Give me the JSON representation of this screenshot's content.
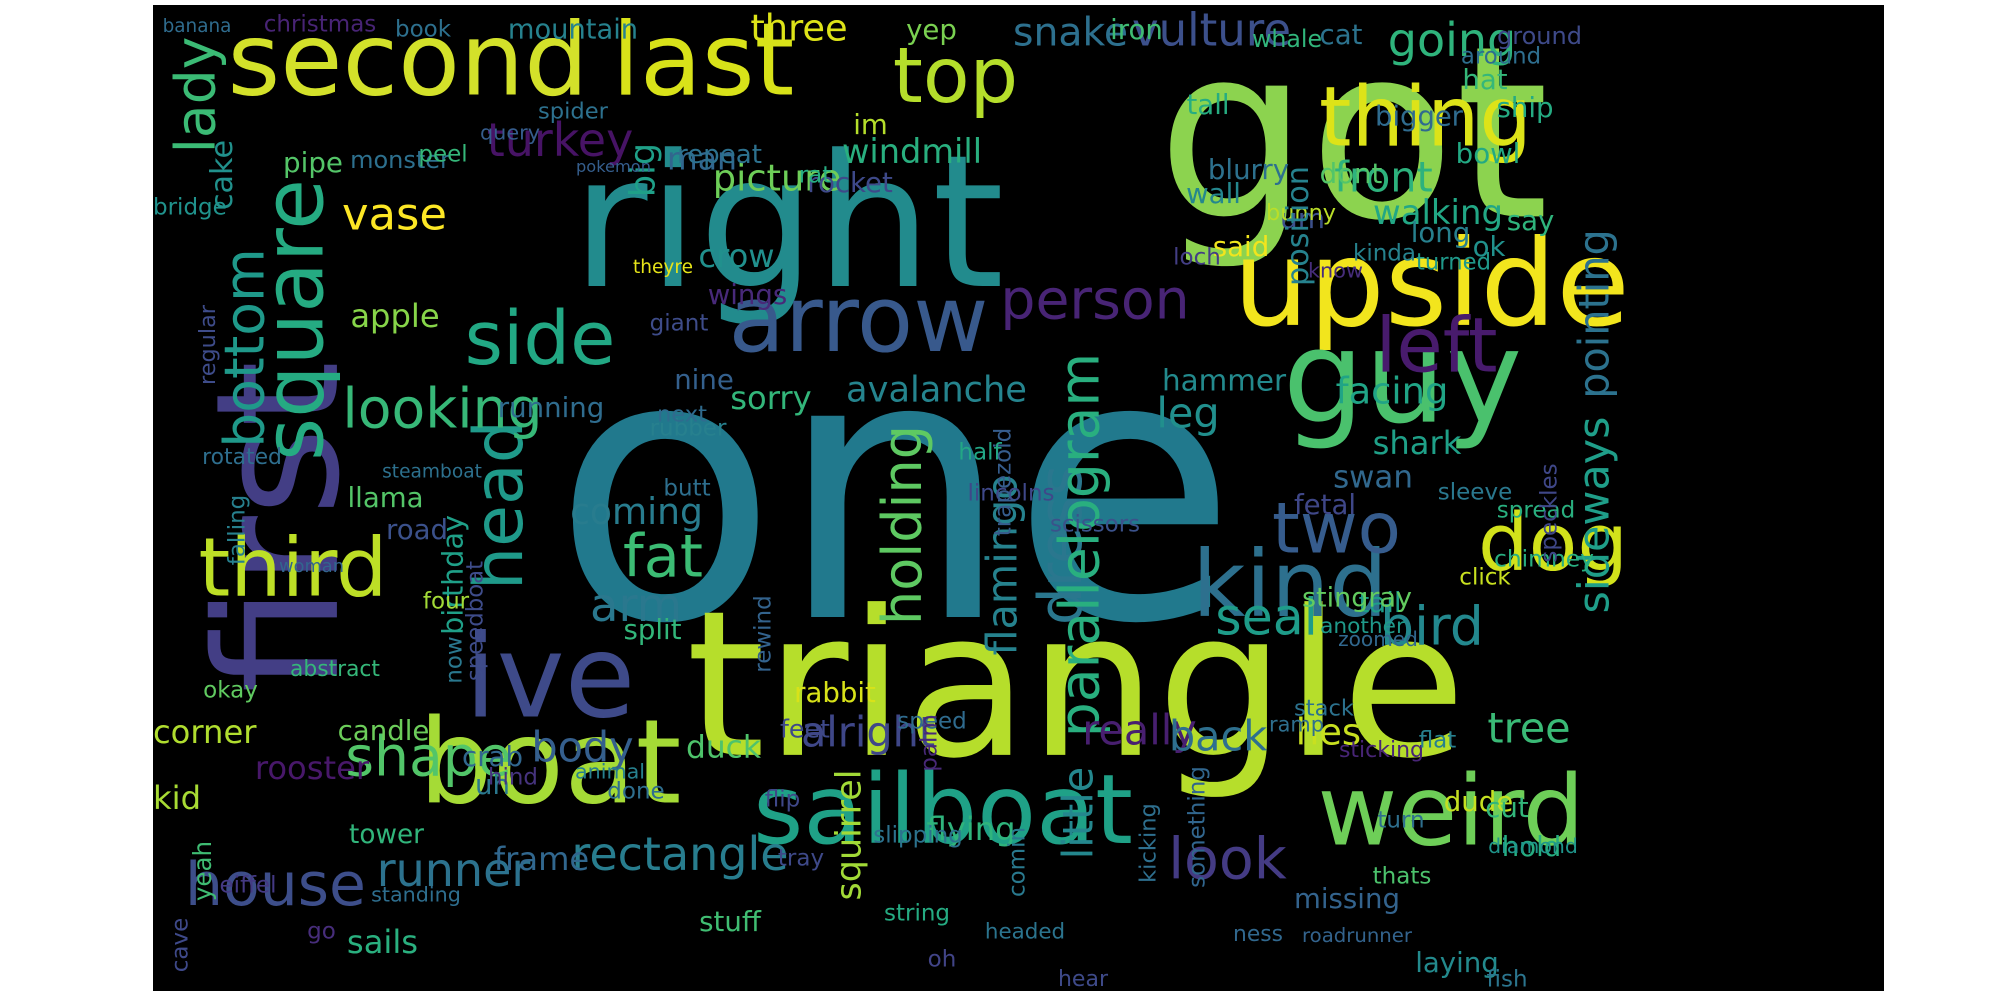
{
  "wordcloud": {
    "background": "#000000",
    "colormap": "viridis",
    "words": [
      {
        "text": "one",
        "color": "#21798d",
        "rotate": false
      },
      {
        "text": "got",
        "color": "#8cd34f",
        "rotate": false
      },
      {
        "text": "first",
        "color": "#433e85",
        "rotate": true
      },
      {
        "text": "triangle",
        "color": "#b6de2b",
        "rotate": false
      },
      {
        "text": "right",
        "color": "#228b8d",
        "rotate": false
      },
      {
        "text": "upside",
        "color": "#f2e51d",
        "rotate": false
      },
      {
        "text": "second",
        "color": "#d3e12a",
        "rotate": false
      },
      {
        "text": "last",
        "color": "#d8e219",
        "rotate": false
      },
      {
        "text": "guy",
        "color": "#4ac16d",
        "rotate": false
      },
      {
        "text": "boat",
        "color": "#a5db36",
        "rotate": false
      },
      {
        "text": "sailboat",
        "color": "#1fa187",
        "rotate": false
      },
      {
        "text": "weird",
        "color": "#6ece58",
        "rotate": false
      },
      {
        "text": "square",
        "color": "#25ab82",
        "rotate": true
      },
      {
        "text": "arrow",
        "color": "#38598c",
        "rotate": false
      },
      {
        "text": "ive",
        "color": "#3e4a89",
        "rotate": false
      },
      {
        "text": "thing",
        "color": "#dde318",
        "rotate": false
      },
      {
        "text": "dog",
        "color": "#d2e21b",
        "rotate": false
      },
      {
        "text": "kind",
        "color": "#2d708e",
        "rotate": false
      },
      {
        "text": "two",
        "color": "#365c8d",
        "rotate": false
      },
      {
        "text": "left",
        "color": "#481b6d",
        "rotate": false
      },
      {
        "text": "top",
        "color": "#b5de2b",
        "rotate": false
      },
      {
        "text": "third",
        "color": "#bddf26",
        "rotate": false
      },
      {
        "text": "head",
        "color": "#1f9a8a",
        "rotate": true
      },
      {
        "text": "side",
        "color": "#22a884",
        "rotate": false
      },
      {
        "text": "looking",
        "color": "#37b878",
        "rotate": false
      },
      {
        "text": "person",
        "color": "#482475",
        "rotate": false
      },
      {
        "text": "dress",
        "color": "#2a778e",
        "rotate": true
      },
      {
        "text": "fat",
        "color": "#3cbc74",
        "rotate": false
      },
      {
        "text": "arm",
        "color": "#2a788e",
        "rotate": false
      },
      {
        "text": "house",
        "color": "#3d4e8a",
        "rotate": false
      },
      {
        "text": "shape",
        "color": "#52c569",
        "rotate": false
      },
      {
        "text": "look",
        "color": "#443b84",
        "rotate": false
      },
      {
        "text": "bird",
        "color": "#23888e",
        "rotate": false
      },
      {
        "text": "seal",
        "color": "#1e9c89",
        "rotate": false
      },
      {
        "text": "vase",
        "color": "#fde725",
        "rotate": false
      },
      {
        "text": "turkey",
        "color": "#471365",
        "rotate": false
      },
      {
        "text": "going",
        "color": "#2fb47c",
        "rotate": false
      },
      {
        "text": "front",
        "color": "#2db27d",
        "rotate": false
      },
      {
        "text": "vulture",
        "color": "#3c508b",
        "rotate": false
      },
      {
        "text": "three",
        "color": "#dde318",
        "rotate": false
      },
      {
        "text": "snake",
        "color": "#2d708e",
        "rotate": false
      },
      {
        "text": "lady",
        "color": "#3bbb75",
        "rotate": true
      },
      {
        "text": "bottom",
        "color": "#1f998a",
        "rotate": true
      },
      {
        "text": "holding",
        "color": "#5ec962",
        "rotate": true
      },
      {
        "text": "parallelogram",
        "color": "#29af7f",
        "rotate": true
      },
      {
        "text": "alright",
        "color": "#3f4788",
        "rotate": false
      },
      {
        "text": "body",
        "color": "#355f8d",
        "rotate": false
      },
      {
        "text": "rectangle",
        "color": "#287d8e",
        "rotate": false
      },
      {
        "text": "runner",
        "color": "#2c728e",
        "rotate": false
      },
      {
        "text": "flamingo",
        "color": "#26828e",
        "rotate": true
      },
      {
        "text": "leg",
        "color": "#218f8d",
        "rotate": false
      },
      {
        "text": "sideways",
        "color": "#1f9e89",
        "rotate": true
      },
      {
        "text": "really",
        "color": "#481f70",
        "rotate": false
      },
      {
        "text": "tree",
        "color": "#3aba76",
        "rotate": false
      },
      {
        "text": "hes",
        "color": "#c8e020",
        "rotate": false
      },
      {
        "text": "back",
        "color": "#2e6f8e",
        "rotate": false
      },
      {
        "text": "little",
        "color": "#24878e",
        "rotate": true
      },
      {
        "text": "coming",
        "color": "#287c8e",
        "rotate": false
      },
      {
        "text": "squirrel",
        "color": "#a2da37",
        "rotate": true
      },
      {
        "text": "rooster",
        "color": "#48186a",
        "rotate": false
      },
      {
        "text": "sails",
        "color": "#2ab07f",
        "rotate": false
      },
      {
        "text": "windmill",
        "color": "#29af7f",
        "rotate": false
      },
      {
        "text": "avalanche",
        "color": "#25848e",
        "rotate": false
      },
      {
        "text": "picture",
        "color": "#6ece58",
        "rotate": false
      },
      {
        "text": "big",
        "color": "#1fa088",
        "rotate": true
      },
      {
        "text": "man",
        "color": "#31668e",
        "rotate": false
      },
      {
        "text": "walking",
        "color": "#22a785",
        "rotate": false
      },
      {
        "text": "um",
        "color": "#3c508b",
        "rotate": false
      },
      {
        "text": "pointing",
        "color": "#2c728e",
        "rotate": true
      },
      {
        "text": "facing",
        "color": "#20a486",
        "rotate": false
      },
      {
        "text": "hammer",
        "color": "#238a8d",
        "rotate": false
      },
      {
        "text": "shark",
        "color": "#1fa088",
        "rotate": false
      },
      {
        "text": "swan",
        "color": "#31688e",
        "rotate": false
      },
      {
        "text": "fetal",
        "color": "#3f4788",
        "rotate": false
      },
      {
        "text": "tail",
        "color": "#1e9d89",
        "rotate": false
      },
      {
        "text": "stingray",
        "color": "#62cb5f",
        "rotate": false
      },
      {
        "text": "chimney",
        "color": "#28ae80",
        "rotate": false
      },
      {
        "text": "road",
        "color": "#3b518b",
        "rotate": false
      },
      {
        "text": "llama",
        "color": "#54c568",
        "rotate": false
      },
      {
        "text": "sorry",
        "color": "#33b67a",
        "rotate": false
      },
      {
        "text": "apple",
        "color": "#87d549",
        "rotate": false
      },
      {
        "text": "crow",
        "color": "#21908d",
        "rotate": false
      },
      {
        "text": "wings",
        "color": "#482979",
        "rotate": false
      },
      {
        "text": "cake",
        "color": "#21918c",
        "rotate": true
      },
      {
        "text": "pipe",
        "color": "#54c568",
        "rotate": false
      },
      {
        "text": "monster",
        "color": "#2d708e",
        "rotate": false
      },
      {
        "text": "repeat",
        "color": "#2d718e",
        "rotate": false
      },
      {
        "text": "rocket",
        "color": "#3e4989",
        "rotate": false
      },
      {
        "text": "birthday",
        "color": "#1fa088",
        "rotate": true
      },
      {
        "text": "running",
        "color": "#2f6c8e",
        "rotate": false
      },
      {
        "text": "nine",
        "color": "#34608d",
        "rotate": false
      },
      {
        "text": "split",
        "color": "#32b67a",
        "rotate": false
      },
      {
        "text": "duck",
        "color": "#4ec36b",
        "rotate": false
      },
      {
        "text": "feet",
        "color": "#3e4989",
        "rotate": false
      },
      {
        "text": "flying",
        "color": "#2fb47c",
        "rotate": false
      },
      {
        "text": "frame",
        "color": "#31678e",
        "rotate": false
      },
      {
        "text": "stuff",
        "color": "#40bd72",
        "rotate": false
      },
      {
        "text": "candle",
        "color": "#6ccd5a",
        "rotate": false
      },
      {
        "text": "crab",
        "color": "#31678e",
        "rotate": false
      },
      {
        "text": "corner",
        "color": "#b0dd2f",
        "rotate": false
      },
      {
        "text": "kid",
        "color": "#a8db34",
        "rotate": false
      },
      {
        "text": "tower",
        "color": "#31b57b",
        "rotate": false
      },
      {
        "text": "yeah",
        "color": "#3fbc73",
        "rotate": true
      },
      {
        "text": "uh",
        "color": "#2a788e",
        "rotate": false
      },
      {
        "text": "rabbit",
        "color": "#d8e219",
        "rotate": false
      },
      {
        "text": "said",
        "color": "#f1e51d",
        "rotate": false
      },
      {
        "text": "bunny",
        "color": "#bade28",
        "rotate": false
      },
      {
        "text": "position",
        "color": "#26828e",
        "rotate": true
      },
      {
        "text": "long",
        "color": "#27808e",
        "rotate": false
      },
      {
        "text": "say",
        "color": "#2fb47c",
        "rotate": false
      },
      {
        "text": "ok",
        "color": "#21918c",
        "rotate": false
      },
      {
        "text": "missing",
        "color": "#33638d",
        "rotate": false
      },
      {
        "text": "laying",
        "color": "#238a8d",
        "rotate": false
      },
      {
        "text": "dude",
        "color": "#c5e021",
        "rotate": false
      },
      {
        "text": "cut",
        "color": "#32b67a",
        "rotate": false
      },
      {
        "text": "hold",
        "color": "#26ad81",
        "rotate": false
      },
      {
        "text": "diamond",
        "color": "#1f958b",
        "rotate": false
      },
      {
        "text": "ship",
        "color": "#25ab82",
        "rotate": false
      },
      {
        "text": "bowl",
        "color": "#23a983",
        "rotate": false
      },
      {
        "text": "hat",
        "color": "#35b779",
        "rotate": false
      },
      {
        "text": "whale",
        "color": "#31b57b",
        "rotate": false
      },
      {
        "text": "cat",
        "color": "#2c738e",
        "rotate": false
      },
      {
        "text": "dont",
        "color": "#52c569",
        "rotate": false
      },
      {
        "text": "bigger",
        "color": "#2f6b8e",
        "rotate": false
      },
      {
        "text": "wall",
        "color": "#24878e",
        "rotate": false
      },
      {
        "text": "blurry",
        "color": "#2d718e",
        "rotate": false
      },
      {
        "text": "tall",
        "color": "#26ad81",
        "rotate": false
      },
      {
        "text": "iron",
        "color": "#3fbc73",
        "rotate": false
      },
      {
        "text": "yep",
        "color": "#7ad151",
        "rotate": false
      },
      {
        "text": "im",
        "color": "#b5de2b",
        "rotate": false
      },
      {
        "text": "around",
        "color": "#2e6e8e",
        "rotate": false
      },
      {
        "text": "ground",
        "color": "#3e4a89",
        "rotate": false
      },
      {
        "text": "christmas",
        "color": "#482475",
        "rotate": false
      },
      {
        "text": "book",
        "color": "#2d708e",
        "rotate": false
      },
      {
        "text": "mountain",
        "color": "#26828e",
        "rotate": false
      },
      {
        "text": "banana",
        "color": "#2f6c8e",
        "rotate": false
      },
      {
        "text": "bridge",
        "color": "#20928c",
        "rotate": false
      },
      {
        "text": "spider",
        "color": "#2d718e",
        "rotate": false
      },
      {
        "text": "peel",
        "color": "#35b779",
        "rotate": false
      },
      {
        "text": "query",
        "color": "#365d8d",
        "rotate": false
      },
      {
        "text": "pokemon",
        "color": "#355e8d",
        "rotate": false
      },
      {
        "text": "rat",
        "color": "#27ad81",
        "rotate": false
      },
      {
        "text": "theyre",
        "color": "#e7e419",
        "rotate": false
      },
      {
        "text": "giant",
        "color": "#3e4c8a",
        "rotate": false
      },
      {
        "text": "regular",
        "color": "#3e4c8a",
        "rotate": true
      },
      {
        "text": "rotated",
        "color": "#2e6e8e",
        "rotate": false
      },
      {
        "text": "steamboat",
        "color": "#2d718e",
        "rotate": false
      },
      {
        "text": "falling",
        "color": "#27808e",
        "rotate": true
      },
      {
        "text": "woman",
        "color": "#32658e",
        "rotate": false
      },
      {
        "text": "four",
        "color": "#a2da37",
        "rotate": false
      },
      {
        "text": "speedboat",
        "color": "#3e4c8a",
        "rotate": true
      },
      {
        "text": "now",
        "color": "#2a788e",
        "rotate": true
      },
      {
        "text": "okay",
        "color": "#60ca60",
        "rotate": false
      },
      {
        "text": "abstract",
        "color": "#35b779",
        "rotate": false
      },
      {
        "text": "rubber",
        "color": "#27808e",
        "rotate": false
      },
      {
        "text": "next",
        "color": "#2f6b8e",
        "rotate": false
      },
      {
        "text": "butt",
        "color": "#2e6f8e",
        "rotate": false
      },
      {
        "text": "rewind",
        "color": "#33638d",
        "rotate": true
      },
      {
        "text": "done",
        "color": "#2e6e8e",
        "rotate": false
      },
      {
        "text": "speed",
        "color": "#2f6b8e",
        "rotate": false
      },
      {
        "text": "palm",
        "color": "#482878",
        "rotate": true
      },
      {
        "text": "half",
        "color": "#22a785",
        "rotate": false
      },
      {
        "text": "lincolns",
        "color": "#3f4889",
        "rotate": false
      },
      {
        "text": "scissors",
        "color": "#3b528b",
        "rotate": false
      },
      {
        "text": "loch",
        "color": "#433e85",
        "rotate": false
      },
      {
        "text": "kinda",
        "color": "#26828e",
        "rotate": false
      },
      {
        "text": "know",
        "color": "#472d7b",
        "rotate": false
      },
      {
        "text": "turned",
        "color": "#1f998a",
        "rotate": false
      },
      {
        "text": "spread",
        "color": "#29af7f",
        "rotate": false
      },
      {
        "text": "sleeve",
        "color": "#2a788e",
        "rotate": false
      },
      {
        "text": "speckles",
        "color": "#3f4788",
        "rotate": true
      },
      {
        "text": "another",
        "color": "#1f998a",
        "rotate": false
      },
      {
        "text": "zoomed",
        "color": "#31688e",
        "rotate": false
      },
      {
        "text": "click",
        "color": "#c8e020",
        "rotate": false
      },
      {
        "text": "ramp",
        "color": "#2e6f8e",
        "rotate": false
      },
      {
        "text": "stack",
        "color": "#2c728e",
        "rotate": false
      },
      {
        "text": "sticking",
        "color": "#482576",
        "rotate": false
      },
      {
        "text": "flat",
        "color": "#27808e",
        "rotate": false
      },
      {
        "text": "turn",
        "color": "#2e6f8e",
        "rotate": false
      },
      {
        "text": "something",
        "color": "#31668e",
        "rotate": true
      },
      {
        "text": "trapezoid",
        "color": "#365d8d",
        "rotate": true
      },
      {
        "text": "kicking",
        "color": "#2e6f8e",
        "rotate": true
      },
      {
        "text": "comin",
        "color": "#29798e",
        "rotate": true
      },
      {
        "text": "thats",
        "color": "#4cc26c",
        "rotate": false
      },
      {
        "text": "headed",
        "color": "#2b748e",
        "rotate": false
      },
      {
        "text": "oh",
        "color": "#414487",
        "rotate": false
      },
      {
        "text": "slipping",
        "color": "#2c728e",
        "rotate": false
      },
      {
        "text": "tray",
        "color": "#3e4989",
        "rotate": false
      },
      {
        "text": "flip",
        "color": "#3f4889",
        "rotate": false
      },
      {
        "text": "string",
        "color": "#25ab82",
        "rotate": false
      },
      {
        "text": "roadrunner",
        "color": "#33638d",
        "rotate": false
      },
      {
        "text": "ness",
        "color": "#31688e",
        "rotate": false
      },
      {
        "text": "hear",
        "color": "#3e4a89",
        "rotate": false
      },
      {
        "text": "fish",
        "color": "#2b758e",
        "rotate": false
      },
      {
        "text": "animal",
        "color": "#27808e",
        "rotate": false
      },
      {
        "text": "hind",
        "color": "#46337e",
        "rotate": false
      },
      {
        "text": "eiffel",
        "color": "#443983",
        "rotate": false
      },
      {
        "text": "standing",
        "color": "#2e6e8e",
        "rotate": false
      },
      {
        "text": "go",
        "color": "#472d7b",
        "rotate": false
      },
      {
        "text": "cave",
        "color": "#3e4989",
        "rotate": true
      }
    ]
  }
}
